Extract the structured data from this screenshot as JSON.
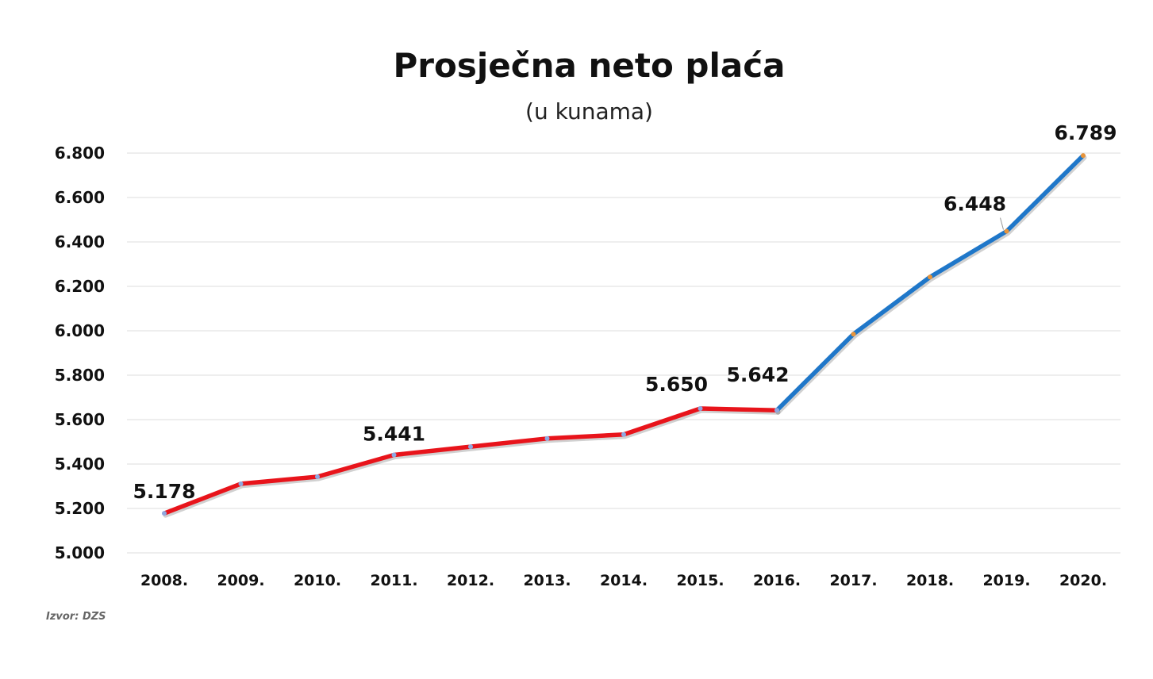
{
  "chart_data": {
    "type": "line",
    "title": "Prosječna neto plaća",
    "subtitle": "(u kunama)",
    "source": "Izvor: DZS",
    "categories": [
      "2008.",
      "2009.",
      "2010.",
      "2011.",
      "2012.",
      "2013.",
      "2014.",
      "2015.",
      "2016.",
      "2017.",
      "2018.",
      "2019.",
      "2020."
    ],
    "values": [
      5178,
      5311,
      5343,
      5441,
      5478,
      5515,
      5533,
      5650,
      5642,
      5985,
      6242,
      6448,
      6789
    ],
    "segments": [
      {
        "from": 0,
        "to": 8,
        "color": "#e8141b"
      },
      {
        "from": 8,
        "to": 12,
        "color": "#1f77c9"
      }
    ],
    "marker_colors": {
      "red_segment": "#8fa8e0",
      "blue_segment": "#e8943a"
    },
    "y_ticks": [
      {
        "value": 5000,
        "label": "5.000"
      },
      {
        "value": 5200,
        "label": "5.200"
      },
      {
        "value": 5400,
        "label": "5.400"
      },
      {
        "value": 5600,
        "label": "5.600"
      },
      {
        "value": 5800,
        "label": "5.800"
      },
      {
        "value": 6000,
        "label": "6.000"
      },
      {
        "value": 6200,
        "label": "6.200"
      },
      {
        "value": 6400,
        "label": "6.400"
      },
      {
        "value": 6600,
        "label": "6.600"
      },
      {
        "value": 6800,
        "label": "6.800"
      }
    ],
    "ylim": [
      5000,
      6800
    ],
    "grid": true,
    "data_labels": [
      {
        "index": 0,
        "text": "5.178"
      },
      {
        "index": 3,
        "text": "5.441"
      },
      {
        "index": 7,
        "text": "5.650"
      },
      {
        "index": 8,
        "text": "5.642"
      },
      {
        "index": 11,
        "text": "6.448"
      },
      {
        "index": 12,
        "text": "6.789"
      }
    ]
  }
}
